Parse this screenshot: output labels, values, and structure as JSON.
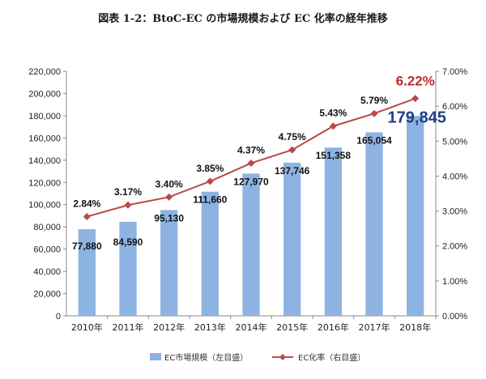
{
  "chart_data": {
    "type": "bar+line",
    "title": "図表 1-2：BtoC-EC の市場規模および EC 化率の経年推移",
    "categories": [
      "2010年",
      "2011年",
      "2012年",
      "2013年",
      "2014年",
      "2015年",
      "2016年",
      "2017年",
      "2018年"
    ],
    "series": [
      {
        "name": "EC市場規模（左目盛）",
        "type": "bar",
        "axis": "left",
        "values": [
          77880,
          84590,
          95130,
          111660,
          127970,
          137746,
          151358,
          165054,
          179845
        ],
        "labels": [
          "77,880",
          "84,590",
          "95,130",
          "111,660",
          "127,970",
          "137,746",
          "151,358",
          "165,054",
          "179,845"
        ],
        "color": "#8db3e2"
      },
      {
        "name": "EC化率（右目盛）",
        "type": "line",
        "axis": "right",
        "values": [
          2.84,
          3.17,
          3.4,
          3.85,
          4.37,
          4.75,
          5.43,
          5.79,
          6.22
        ],
        "labels": [
          "2.84%",
          "3.17%",
          "3.40%",
          "3.85%",
          "4.37%",
          "4.75%",
          "5.43%",
          "5.79%",
          "6.22%"
        ],
        "color": "#b94a48"
      }
    ],
    "left_axis": {
      "min": 0,
      "max": 220000,
      "ticks": [
        "0",
        "20,000",
        "40,000",
        "60,000",
        "80,000",
        "100,000",
        "120,000",
        "140,000",
        "160,000",
        "180,000",
        "200,000",
        "220,000"
      ]
    },
    "right_axis": {
      "min": 0,
      "max": 7,
      "ticks": [
        "0.00%",
        "1.00%",
        "2.00%",
        "3.00%",
        "4.00%",
        "5.00%",
        "6.00%",
        "7.00%"
      ]
    },
    "grid": false,
    "legend_position": "bottom",
    "highlight_last": true,
    "colors": {
      "bar": "#8db3e2",
      "line": "#b94a48",
      "highlight_bar_label": "#1f3f86",
      "highlight_rate_label": "#c0292c"
    }
  }
}
